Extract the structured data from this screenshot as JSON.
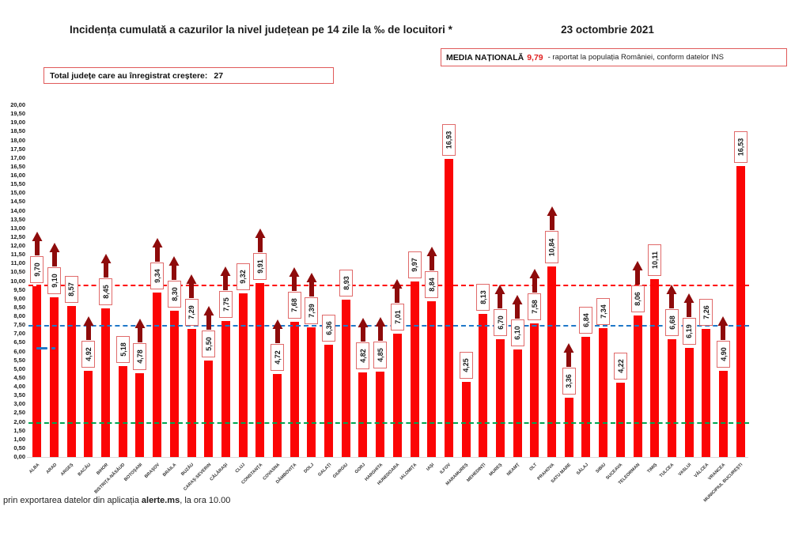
{
  "header": {
    "title": "Incidența cumulată a cazurilor la nivel județean pe 14 zile la ‰ de locuitori *",
    "date": "23 octombrie 2021"
  },
  "national_average_box": {
    "label": "MEDIA NAȚIONALĂ",
    "value": "9,79",
    "note": "-  raportat la populația României, conform datelor INS"
  },
  "total_box": {
    "label": "Total județe care au înregistrat creștere:",
    "value": "27"
  },
  "footer": {
    "prefix": "prin exportarea datelor din aplicația ",
    "bold": "alerte.ms",
    "suffix": ", la ora 10.00"
  },
  "colors": {
    "bar": "#fb0505",
    "arrow": "#8e0b0b",
    "label_border": "#e06a6a",
    "national_line": "#ff0000",
    "blue_line": "#1f78c8",
    "green_line": "#00a651",
    "accent_red_text": "#e02020"
  },
  "chart_data": {
    "type": "bar",
    "title": "Incidența cumulată a cazurilor la nivel județean pe 14 zile la ‰ de locuitori *",
    "xlabel": "",
    "ylabel": "",
    "ylim": [
      0,
      20
    ],
    "ytick_step": 0.5,
    "grid": false,
    "legend": "none",
    "decimal_separator": ",",
    "reference_lines": [
      {
        "name": "media-nationala",
        "value": 9.79,
        "color": "#ff0000"
      },
      {
        "name": "prag-albastru",
        "value": 7.5,
        "color": "#1f78c8"
      },
      {
        "name": "prag-verde",
        "value": 2.0,
        "color": "#00a651"
      }
    ],
    "categories": [
      {
        "name": "ALBA",
        "value": 9.7,
        "label": "9,70",
        "rising": true
      },
      {
        "name": "ARAD",
        "value": 9.1,
        "label": "9,10",
        "rising": true
      },
      {
        "name": "ARGEȘ",
        "value": 8.57,
        "label": "8,57",
        "rising": false
      },
      {
        "name": "BACĂU",
        "value": 4.92,
        "label": "4,92",
        "rising": true
      },
      {
        "name": "BIHOR",
        "value": 8.45,
        "label": "8,45",
        "rising": true
      },
      {
        "name": "BISTRIȚA-NĂSĂUD",
        "value": 5.18,
        "label": "5,18",
        "rising": false
      },
      {
        "name": "BOTOȘANI",
        "value": 4.78,
        "label": "4,78",
        "rising": true
      },
      {
        "name": "BRAȘOV",
        "value": 9.34,
        "label": "9,34",
        "rising": true
      },
      {
        "name": "BRĂILA",
        "value": 8.3,
        "label": "8,30",
        "rising": true
      },
      {
        "name": "BUZĂU",
        "value": 7.29,
        "label": "7,29",
        "rising": true
      },
      {
        "name": "CARAȘ-SEVERIN",
        "value": 5.5,
        "label": "5,50",
        "rising": true
      },
      {
        "name": "CĂLĂRAȘI",
        "value": 7.75,
        "label": "7,75",
        "rising": true
      },
      {
        "name": "CLUJ",
        "value": 9.32,
        "label": "9,32",
        "rising": false
      },
      {
        "name": "CONSTANȚA",
        "value": 9.91,
        "label": "9,91",
        "rising": true
      },
      {
        "name": "COVASNA",
        "value": 4.72,
        "label": "4,72",
        "rising": true
      },
      {
        "name": "DÂMBOVIȚA",
        "value": 7.68,
        "label": "7,68",
        "rising": true
      },
      {
        "name": "DOLJ",
        "value": 7.39,
        "label": "7,39",
        "rising": true
      },
      {
        "name": "GALAȚI",
        "value": 6.36,
        "label": "6,36",
        "rising": false
      },
      {
        "name": "GIURGIU",
        "value": 8.93,
        "label": "8,93",
        "rising": false
      },
      {
        "name": "GORJ",
        "value": 4.82,
        "label": "4,82",
        "rising": true
      },
      {
        "name": "HARGHITA",
        "value": 4.85,
        "label": "4,85",
        "rising": true
      },
      {
        "name": "HUNEDOARA",
        "value": 7.01,
        "label": "7,01",
        "rising": true
      },
      {
        "name": "IALOMIȚA",
        "value": 9.97,
        "label": "9,97",
        "rising": false
      },
      {
        "name": "IAȘI",
        "value": 8.84,
        "label": "8,84",
        "rising": true
      },
      {
        "name": "ILFOV",
        "value": 16.93,
        "label": "16,93",
        "rising": false
      },
      {
        "name": "MARAMUREȘ",
        "value": 4.25,
        "label": "4,25",
        "rising": false
      },
      {
        "name": "MEHEDINȚI",
        "value": 8.13,
        "label": "8,13",
        "rising": false
      },
      {
        "name": "MUREȘ",
        "value": 6.7,
        "label": "6,70",
        "rising": true
      },
      {
        "name": "NEAMȚ",
        "value": 6.1,
        "label": "6,10",
        "rising": true
      },
      {
        "name": "OLT",
        "value": 7.58,
        "label": "7,58",
        "rising": true
      },
      {
        "name": "PRAHOVA",
        "value": 10.84,
        "label": "10,84",
        "rising": true
      },
      {
        "name": "SATU MARE",
        "value": 3.36,
        "label": "3,36",
        "rising": true
      },
      {
        "name": "SĂLAJ",
        "value": 6.84,
        "label": "6,84",
        "rising": false
      },
      {
        "name": "SIBIU",
        "value": 7.34,
        "label": "7,34",
        "rising": false
      },
      {
        "name": "SUCEAVA",
        "value": 4.22,
        "label": "4,22",
        "rising": false
      },
      {
        "name": "TELEORMAN",
        "value": 8.06,
        "label": "8,06",
        "rising": true
      },
      {
        "name": "TIMIȘ",
        "value": 10.11,
        "label": "10,11",
        "rising": false
      },
      {
        "name": "TULCEA",
        "value": 6.68,
        "label": "6,68",
        "rising": true
      },
      {
        "name": "VASLUI",
        "value": 6.19,
        "label": "6,19",
        "rising": true
      },
      {
        "name": "VÂLCEA",
        "value": 7.26,
        "label": "7,26",
        "rising": false
      },
      {
        "name": "VRANCEA",
        "value": 4.9,
        "label": "4,90",
        "rising": true
      },
      {
        "name": "MUNICIPIUL BUCUREȘTI",
        "value": 16.53,
        "label": "16,53",
        "rising": false
      }
    ]
  }
}
